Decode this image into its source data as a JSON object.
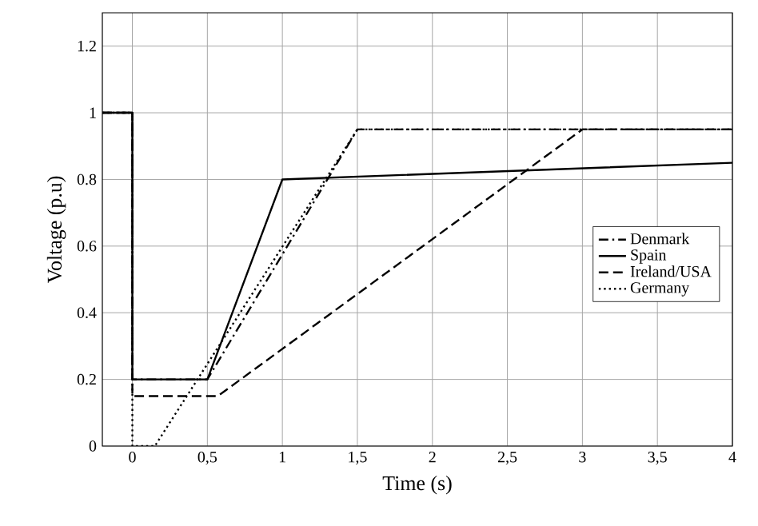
{
  "chart_data": {
    "type": "line",
    "xlabel": "Time (s)",
    "ylabel": "Voltage (p.u)",
    "xlim": [
      -0.2,
      4
    ],
    "ylim": [
      0,
      1.3
    ],
    "xticks": [
      0,
      {
        "value": 0.5,
        "label": "0,5"
      },
      1,
      {
        "value": 1.5,
        "label": "1,5"
      },
      2,
      {
        "value": 2.5,
        "label": "2,5"
      },
      3,
      {
        "value": 3.5,
        "label": "3,5"
      },
      4
    ],
    "yticks": [
      0,
      0.2,
      0.4,
      0.6,
      0.8,
      1,
      1.2
    ],
    "grid": true,
    "legend": "right",
    "marker": "none",
    "series": [
      {
        "name": "Denmark",
        "color": "#000000",
        "line_style": "dashdot",
        "x": [
          -0.2,
          0,
          0,
          0.5,
          1.5,
          4
        ],
        "values": [
          1,
          1,
          0.2,
          0.2,
          0.95,
          0.95
        ]
      },
      {
        "name": "Spain",
        "color": "#000000",
        "line_style": "solid",
        "x": [
          -0.2,
          0,
          0,
          0.5,
          1,
          4
        ],
        "values": [
          1,
          1,
          0.2,
          0.2,
          0.8,
          0.85
        ]
      },
      {
        "name": "Ireland/USA",
        "color": "#000000",
        "line_style": "dashed",
        "x": [
          -0.2,
          0,
          0,
          0.57,
          3,
          4
        ],
        "values": [
          1,
          1,
          0.15,
          0.15,
          0.95,
          0.95
        ]
      },
      {
        "name": "Germany",
        "color": "#000000",
        "line_style": "dotted",
        "x": [
          -0.2,
          0,
          0,
          0.15,
          1.5,
          4
        ],
        "values": [
          1,
          1,
          0,
          0,
          0.95,
          0.95
        ]
      }
    ]
  }
}
